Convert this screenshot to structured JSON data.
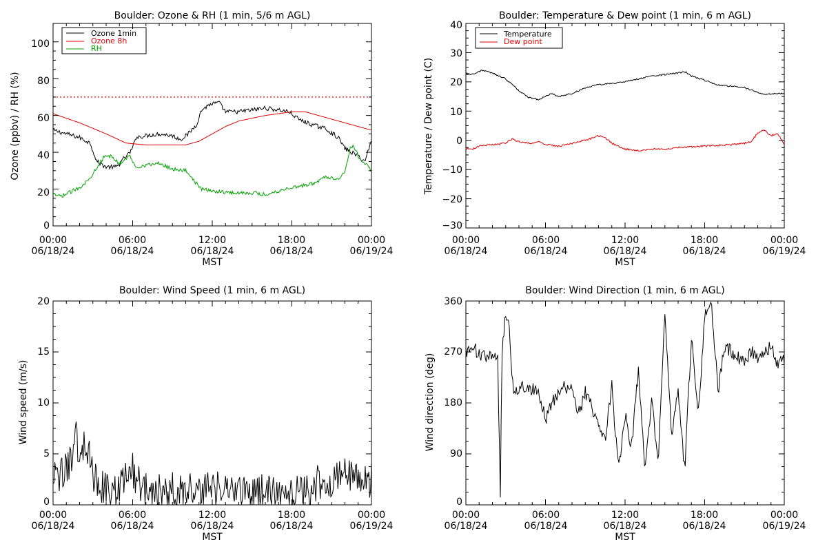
{
  "colors": {
    "black": "#000000",
    "red": "#e00000",
    "green": "#00a000",
    "frame": "#000000"
  },
  "chart_data": [
    {
      "type": "line",
      "title": "Boulder: Ozone & RH (1 min, 5/6 m AGL)",
      "ylabel": "Ozone (ppbv) / RH (%)",
      "xlabel": "MST",
      "xlim": [
        0,
        24
      ],
      "ylim": [
        0,
        110
      ],
      "y_ticks": [
        "0",
        "20",
        "40",
        "60",
        "80",
        "100"
      ],
      "y_tick_values": [
        0,
        20,
        40,
        60,
        80,
        100
      ],
      "x_tick_values": [
        0,
        6,
        12,
        18,
        24
      ],
      "x_tick_labels": [
        [
          "00:00",
          "06/18/24"
        ],
        [
          "06:00",
          "06/18/24"
        ],
        [
          "12:00",
          "06/18/24"
        ],
        [
          "18:00",
          "06/18/24"
        ],
        [
          "00:00",
          "06/19/24"
        ]
      ],
      "legend_position": "top-left",
      "reference_line": {
        "y": 70,
        "style": "dotted",
        "color": "#e00000"
      },
      "series": [
        {
          "name": "Ozone 1min",
          "color": "#000000",
          "noise": 1.2,
          "x": [
            0,
            1,
            2,
            2.8,
            3.3,
            4.0,
            4.8,
            5.4,
            5.8,
            6.0,
            6.2,
            7.0,
            8.0,
            9.0,
            9.6,
            10.2,
            10.8,
            11.2,
            11.8,
            12.5,
            13.0,
            14.0,
            15.0,
            16.0,
            17.0,
            17.8,
            18.5,
            19.5,
            20.5,
            21.5,
            22.0,
            22.5,
            23.0,
            23.5,
            23.8,
            24.0
          ],
          "values": [
            52,
            50,
            48,
            45,
            35,
            32,
            32,
            37,
            40,
            42,
            48,
            49,
            50,
            49,
            47,
            50,
            55,
            63,
            66,
            67,
            62,
            62,
            63,
            64,
            63,
            62,
            58,
            55,
            53,
            48,
            42,
            40,
            38,
            35,
            42,
            46
          ]
        },
        {
          "name": "Ozone 8h",
          "color": "#e00000",
          "noise": 0,
          "x": [
            0,
            2,
            4,
            5.5,
            7,
            8.5,
            10,
            11,
            12,
            13,
            14,
            16,
            18,
            19,
            20,
            21,
            22,
            23,
            24
          ],
          "values": [
            61,
            56,
            50,
            45,
            44,
            44,
            44,
            46,
            50,
            54,
            57,
            60,
            62,
            62,
            60,
            58,
            56,
            54,
            52
          ]
        },
        {
          "name": "RH",
          "color": "#00a000",
          "noise": 1.0,
          "x": [
            0,
            0.6,
            1.2,
            2.0,
            2.7,
            3.1,
            3.8,
            4.3,
            5.0,
            5.8,
            6.2,
            7.0,
            8.0,
            9.0,
            10.0,
            10.3,
            10.8,
            11.2,
            12.0,
            13.5,
            15.0,
            16.0,
            17.0,
            18.0,
            19.0,
            20.0,
            20.5,
            21.0,
            21.6,
            22.0,
            22.4,
            22.6,
            23.0,
            23.5,
            24.0
          ],
          "values": [
            17,
            16,
            18,
            21,
            25,
            30,
            37,
            38,
            34,
            38,
            32,
            33,
            34,
            31,
            30,
            28,
            23,
            20,
            19,
            18,
            18,
            17,
            19,
            21,
            22,
            24,
            27,
            26,
            26,
            30,
            42,
            44,
            38,
            34,
            30
          ]
        }
      ]
    },
    {
      "type": "line",
      "title": "Boulder: Temperature & Dew point (1 min, 6 m AGL)",
      "ylabel": "Temperature / Dew point (C)",
      "xlabel": "MST",
      "xlim": [
        0,
        24
      ],
      "ylim": [
        -30,
        40
      ],
      "y_ticks": [
        "−30",
        "−20",
        "−10",
        "0",
        "10",
        "20",
        "30",
        "40"
      ],
      "y_tick_values": [
        -30,
        -20,
        -10,
        0,
        10,
        20,
        30,
        40
      ],
      "x_tick_values": [
        0,
        6,
        12,
        18,
        24
      ],
      "x_tick_labels": [
        [
          "00:00",
          "06/18/24"
        ],
        [
          "06:00",
          "06/18/24"
        ],
        [
          "12:00",
          "06/18/24"
        ],
        [
          "18:00",
          "06/18/24"
        ],
        [
          "00:00",
          "06/19/24"
        ]
      ],
      "legend_position": "top-left",
      "series": [
        {
          "name": "Temperature",
          "color": "#000000",
          "noise": 0.25,
          "x": [
            0,
            0.5,
            1.2,
            2.0,
            3.0,
            4.0,
            4.8,
            5.5,
            6.0,
            6.5,
            7.0,
            7.5,
            8.0,
            9.0,
            10.0,
            11.0,
            12.0,
            13.0,
            14.0,
            15.0,
            16.0,
            16.5,
            17.0,
            18.0,
            19.0,
            20.0,
            21.0,
            22.0,
            22.5,
            23.0,
            24.0
          ],
          "values": [
            23,
            22.5,
            24,
            23,
            21,
            17,
            14.5,
            14,
            15,
            16,
            15,
            15.5,
            16,
            18,
            19,
            19.5,
            20,
            21,
            22,
            22.5,
            23,
            23.5,
            22,
            20.5,
            19,
            18.5,
            18,
            16.5,
            15.5,
            16,
            16
          ]
        },
        {
          "name": "Dew point",
          "color": "#e00000",
          "noise": 0.3,
          "x": [
            0,
            0.5,
            1.0,
            2.0,
            3.0,
            3.5,
            4.0,
            5.0,
            5.5,
            6.0,
            7.0,
            8.0,
            9.0,
            10.0,
            10.5,
            11.0,
            12.0,
            13.0,
            14.0,
            15.0,
            16.0,
            18.0,
            20.0,
            21.0,
            21.5,
            22.0,
            22.5,
            23.0,
            23.5,
            24.0
          ],
          "values": [
            -3,
            -3,
            -2,
            -1.5,
            -1,
            0.5,
            -0.5,
            -1,
            -0.5,
            -1.5,
            -2,
            -1,
            0,
            1.5,
            1,
            -1,
            -3,
            -3.5,
            -3,
            -3,
            -2.5,
            -2,
            -1.5,
            -1,
            -0.5,
            2.5,
            3.5,
            1.5,
            2.5,
            -1.5
          ]
        }
      ]
    },
    {
      "type": "line",
      "title": "Boulder: Wind Speed (1 min, 6 m AGL)",
      "ylabel": "Wind speed (m/s)",
      "xlabel": "MST",
      "xlim": [
        0,
        24
      ],
      "ylim": [
        0,
        20
      ],
      "y_ticks": [
        "0",
        "5",
        "10",
        "15",
        "20"
      ],
      "y_tick_values": [
        0,
        5,
        10,
        15,
        20
      ],
      "x_tick_values": [
        0,
        6,
        12,
        18,
        24
      ],
      "x_tick_labels": [
        [
          "00:00",
          "06/18/24"
        ],
        [
          "06:00",
          "06/18/24"
        ],
        [
          "12:00",
          "06/18/24"
        ],
        [
          "18:00",
          "06/18/24"
        ],
        [
          "00:00",
          "06/19/24"
        ]
      ],
      "series": [
        {
          "name": "",
          "color": "#000000",
          "noise": 1.8,
          "x": [
            0,
            0.8,
            1.3,
            1.6,
            2.0,
            2.5,
            3.0,
            3.5,
            4.0,
            4.5,
            5.0,
            5.5,
            6.0,
            6.5,
            7.0,
            8.0,
            9.0,
            10.0,
            11.0,
            12.0,
            13.0,
            14.0,
            15.0,
            16.0,
            17.0,
            18.0,
            19.0,
            19.5,
            20.0,
            20.5,
            21.0,
            21.5,
            22.0,
            22.5,
            23.0,
            24.0
          ],
          "values": [
            2.5,
            3,
            4,
            7,
            5.5,
            6,
            3,
            2,
            1.5,
            1.2,
            1.5,
            3,
            3.5,
            2,
            1.5,
            1.5,
            1.5,
            1.5,
            1.8,
            1.5,
            1.5,
            1.5,
            1.3,
            1.3,
            1.0,
            1.0,
            1.3,
            1.8,
            2.2,
            2.5,
            2.2,
            2.5,
            3.5,
            3,
            2.5,
            2.5
          ]
        }
      ]
    },
    {
      "type": "line",
      "title": "Boulder: Wind Direction (1 min, 6 m AGL)",
      "ylabel": "Wind direction (deg)",
      "xlabel": "MST",
      "xlim": [
        0,
        24
      ],
      "ylim": [
        0,
        360
      ],
      "y_ticks": [
        "0",
        "90",
        "180",
        "270",
        "360"
      ],
      "y_tick_values": [
        0,
        90,
        180,
        270,
        360
      ],
      "x_tick_values": [
        0,
        6,
        12,
        18,
        24
      ],
      "x_tick_labels": [
        [
          "00:00",
          "06/18/24"
        ],
        [
          "06:00",
          "06/18/24"
        ],
        [
          "12:00",
          "06/18/24"
        ],
        [
          "18:00",
          "06/18/24"
        ],
        [
          "00:00",
          "06/19/24"
        ]
      ],
      "series": [
        {
          "name": "",
          "color": "#000000",
          "noise": 12,
          "x": [
            0,
            0.5,
            1.0,
            2.0,
            2.4,
            2.6,
            2.7,
            2.9,
            3.1,
            3.3,
            3.5,
            3.8,
            4.5,
            5.0,
            5.5,
            6.0,
            6.5,
            7.0,
            7.5,
            8.0,
            8.5,
            9.0,
            9.5,
            10.0,
            10.5,
            11.0,
            11.5,
            12.0,
            12.5,
            13.0,
            13.5,
            14.0,
            14.5,
            15.0,
            15.5,
            16.0,
            16.5,
            17.0,
            17.5,
            18.0,
            18.5,
            19.0,
            19.5,
            20.0,
            20.5,
            21.0,
            21.5,
            22.0,
            22.5,
            23.0,
            23.5,
            24.0
          ],
          "values": [
            270,
            280,
            265,
            260,
            255,
            10,
            250,
            320,
            340,
            300,
            210,
            205,
            210,
            205,
            200,
            150,
            180,
            200,
            210,
            200,
            160,
            200,
            170,
            150,
            110,
            210,
            60,
            160,
            100,
            240,
            60,
            180,
            80,
            340,
            120,
            200,
            60,
            300,
            150,
            330,
            360,
            200,
            280,
            270,
            260,
            250,
            270,
            260,
            265,
            280,
            250,
            255
          ]
        }
      ]
    }
  ]
}
